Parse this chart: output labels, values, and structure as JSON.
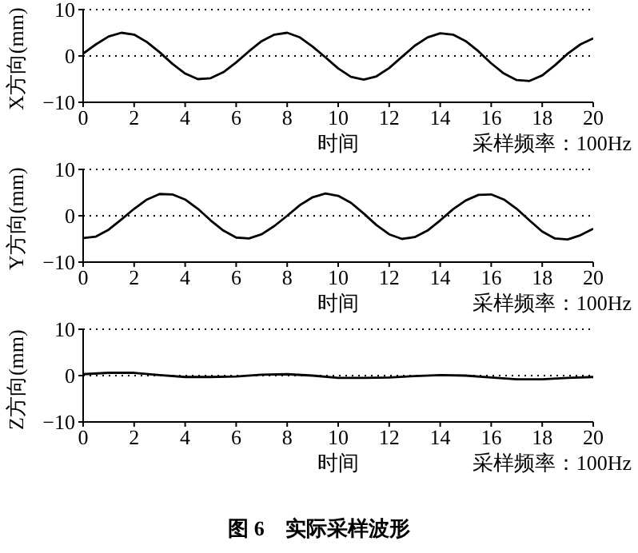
{
  "chart_data": [
    {
      "type": "line",
      "ylabel": "X方向(mm)",
      "xlabel": "时间",
      "annotations": [
        "采样频率：100Hz"
      ],
      "xlim": [
        0,
        20
      ],
      "xticks": [
        0,
        2,
        4,
        6,
        8,
        10,
        12,
        14,
        16,
        18,
        20
      ],
      "ylim": [
        -10,
        10
      ],
      "yticks": [
        -10,
        0,
        10
      ],
      "grid": "y",
      "legend": false,
      "x": [
        0,
        0.5,
        1,
        1.5,
        2,
        2.5,
        3,
        3.5,
        4,
        4.5,
        5,
        5.5,
        6,
        6.5,
        7,
        7.5,
        8,
        8.5,
        9,
        9.5,
        10,
        10.5,
        11,
        11.5,
        12,
        12.5,
        13,
        13.5,
        14,
        14.5,
        15,
        15.5,
        16,
        16.5,
        17,
        17.5,
        18,
        18.5,
        19,
        19.5,
        20
      ],
      "series": [
        {
          "color": "#000000",
          "values": [
            0.5,
            2.5,
            4.2,
            5,
            4.6,
            3,
            0.8,
            -1.7,
            -3.8,
            -5,
            -4.8,
            -3.5,
            -1.4,
            1,
            3.2,
            4.6,
            5,
            4,
            2,
            -0.3,
            -2.7,
            -4.5,
            -5.1,
            -4.4,
            -2.6,
            -0.2,
            2.2,
            4,
            4.9,
            4.6,
            3.2,
            1,
            -1.6,
            -3.8,
            -5.2,
            -5.4,
            -4.2,
            -2,
            0.5,
            2.5,
            3.8
          ]
        }
      ]
    },
    {
      "type": "line",
      "ylabel": "Y方向(mm)",
      "xlabel": "时间",
      "annotations": [
        "采样频率：100Hz"
      ],
      "xlim": [
        0,
        20
      ],
      "xticks": [
        0,
        2,
        4,
        6,
        8,
        10,
        12,
        14,
        16,
        18,
        20
      ],
      "ylim": [
        -10,
        10
      ],
      "yticks": [
        -10,
        0,
        10
      ],
      "grid": "y",
      "legend": false,
      "x": [
        0,
        0.5,
        1,
        1.5,
        2,
        2.5,
        3,
        3.5,
        4,
        4.5,
        5,
        5.5,
        6,
        6.5,
        7,
        7.5,
        8,
        8.5,
        9,
        9.5,
        10,
        10.5,
        11,
        11.5,
        12,
        12.5,
        13,
        13.5,
        14,
        14.5,
        15,
        15.5,
        16,
        16.5,
        17,
        17.5,
        18,
        18.5,
        19,
        19.5,
        20
      ],
      "series": [
        {
          "color": "#000000",
          "values": [
            -4.8,
            -4.5,
            -3,
            -0.8,
            1.5,
            3.5,
            4.7,
            4.6,
            3.5,
            1.5,
            -1,
            -3.2,
            -4.7,
            -4.9,
            -4,
            -2.2,
            0,
            2.3,
            4,
            4.8,
            4.3,
            2.8,
            0.5,
            -2,
            -4,
            -5,
            -4.6,
            -3.2,
            -1,
            1.4,
            3.3,
            4.5,
            4.6,
            3.5,
            1.5,
            -1,
            -3.4,
            -4.9,
            -5.1,
            -4.2,
            -2.8
          ]
        }
      ]
    },
    {
      "type": "line",
      "ylabel": "Z方向(mm)",
      "xlabel": "时间",
      "annotations": [
        "采样频率：100Hz",
        "图 6　实际采样波形"
      ],
      "xlim": [
        0,
        20
      ],
      "xticks": [
        0,
        2,
        4,
        6,
        8,
        10,
        12,
        14,
        16,
        18,
        20
      ],
      "ylim": [
        -10,
        10
      ],
      "yticks": [
        -10,
        0,
        10
      ],
      "grid": "y",
      "legend": false,
      "x": [
        0,
        1,
        2,
        3,
        4,
        5,
        6,
        7,
        8,
        9,
        10,
        11,
        12,
        13,
        14,
        15,
        16,
        17,
        18,
        19,
        20
      ],
      "series": [
        {
          "color": "#000000",
          "values": [
            0.3,
            0.6,
            0.6,
            0.1,
            -0.3,
            -0.3,
            -0.2,
            0.2,
            0.3,
            0,
            -0.5,
            -0.5,
            -0.4,
            -0.1,
            0.1,
            0,
            -0.4,
            -0.8,
            -0.8,
            -0.5,
            -0.3
          ]
        }
      ]
    }
  ]
}
